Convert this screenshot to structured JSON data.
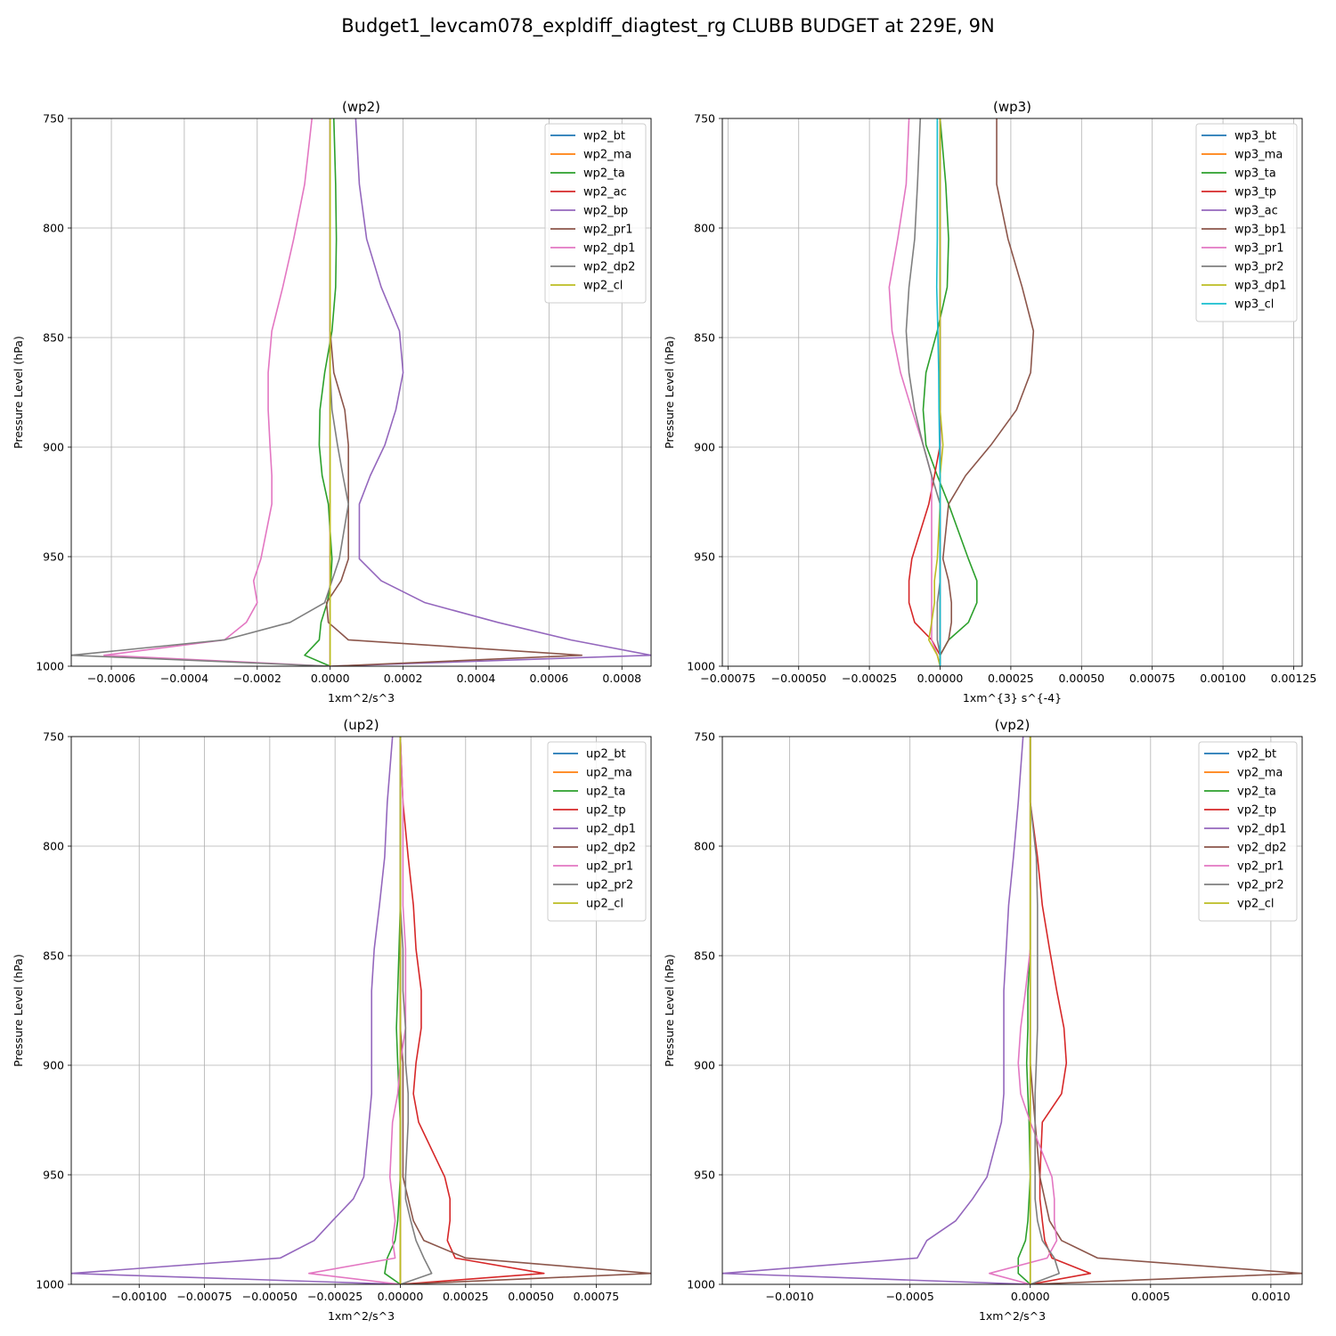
{
  "figure": {
    "title": "Budget1_levcam078_expldiff_diagtest_rg CLUBB BUDGET at 229E, 9N"
  },
  "chart_data": [
    {
      "type": "line",
      "title": "(wp2)",
      "xlabel": "1xm^2/s^3",
      "ylabel": "Pressure Level (hPa)",
      "xlim": [
        -0.00071,
        0.00088
      ],
      "ylim": [
        1000,
        750
      ],
      "xticks": [
        -0.0006,
        -0.0004,
        -0.0002,
        0.0,
        0.0002,
        0.0004,
        0.0006,
        0.0008
      ],
      "xtick_labels": [
        "−0.0006",
        "−0.0004",
        "−0.0002",
        "0.0000",
        "0.0002",
        "0.0004",
        "0.0006",
        "0.0008"
      ],
      "yticks": [
        750,
        800,
        850,
        900,
        950,
        1000
      ],
      "ytick_labels": [
        "750",
        "800",
        "850",
        "900",
        "950",
        "1000"
      ],
      "grid": true,
      "legend": "upper right",
      "levels": [
        750,
        780,
        805,
        827,
        847,
        866,
        883,
        899,
        913,
        926,
        951,
        961,
        971,
        980,
        988,
        995,
        1000
      ],
      "series": [
        {
          "name": "wp2_bt",
          "color": "#1f77b4",
          "values": [
            0,
            0,
            0,
            0,
            0,
            0,
            0,
            0,
            0,
            0,
            0,
            0,
            0,
            0,
            0,
            0,
            0
          ]
        },
        {
          "name": "wp2_ma",
          "color": "#ff7f0e",
          "values": [
            0,
            0,
            0,
            0,
            0,
            0,
            0,
            0,
            0,
            0,
            0,
            0,
            0,
            0,
            0,
            0,
            0
          ]
        },
        {
          "name": "wp2_ta",
          "color": "#2ca02c",
          "values": [
            1e-05,
            1.5e-05,
            1.7e-05,
            1.5e-05,
            5e-06,
            -1.5e-05,
            -2.8e-05,
            -3e-05,
            -2.2e-05,
            -5e-06,
            5e-06,
            2e-06,
            -8e-06,
            -2.5e-05,
            -3e-05,
            -7e-05,
            0
          ]
        },
        {
          "name": "wp2_ac",
          "color": "#d62728",
          "values": [
            0,
            0,
            0,
            0,
            0,
            0,
            0,
            0,
            0,
            0,
            0,
            0,
            0,
            0,
            0,
            0,
            0
          ]
        },
        {
          "name": "wp2_bp",
          "color": "#9467bd",
          "values": [
            7e-05,
            8e-05,
            0.0001,
            0.00014,
            0.00019,
            0.0002,
            0.00018,
            0.00015,
            0.00011,
            8e-05,
            8e-05,
            0.00014,
            0.00026,
            0.00046,
            0.00066,
            0.00088,
            0
          ]
        },
        {
          "name": "wp2_pr1",
          "color": "#8c564b",
          "values": [
            0,
            0,
            0,
            0,
            0,
            1e-05,
            4e-05,
            5e-05,
            5e-05,
            5e-05,
            5e-05,
            3e-05,
            -1e-05,
            -5e-06,
            5e-05,
            0.00069,
            5e-06
          ]
        },
        {
          "name": "wp2_dp1",
          "color": "#e377c2",
          "values": [
            -5e-05,
            -7e-05,
            -0.0001,
            -0.00013,
            -0.00016,
            -0.00017,
            -0.00017,
            -0.000165,
            -0.00016,
            -0.00016,
            -0.00019,
            -0.00021,
            -0.0002,
            -0.00023,
            -0.00029,
            -0.00062,
            0
          ]
        },
        {
          "name": "wp2_dp2",
          "color": "#7f7f7f",
          "values": [
            0,
            0,
            0,
            0,
            0,
            0,
            5e-06,
            2e-05,
            3.5e-05,
            5e-05,
            2.5e-05,
            5e-06,
            -1.5e-05,
            -0.00011,
            -0.00029,
            -0.00071,
            0
          ]
        },
        {
          "name": "wp2_cl",
          "color": "#bcbd22",
          "values": [
            0,
            0,
            0,
            0,
            0,
            0,
            0,
            0,
            0,
            0,
            0,
            0,
            0,
            0,
            0,
            0,
            0
          ]
        }
      ]
    },
    {
      "type": "line",
      "title": "(wp3)",
      "xlabel": "1xm^{3} s^{-4}",
      "ylabel": "Pressure Level (hPa)",
      "xlim": [
        -0.00077,
        0.00128
      ],
      "ylim": [
        1000,
        750
      ],
      "xticks": [
        -0.00075,
        -0.0005,
        -0.00025,
        0.0,
        0.00025,
        0.0005,
        0.00075,
        0.001,
        0.00125
      ],
      "xtick_labels": [
        "−0.00075",
        "−0.00050",
        "−0.00025",
        "0.00000",
        "0.00025",
        "0.00050",
        "0.00075",
        "0.00100",
        "0.00125"
      ],
      "yticks": [
        750,
        800,
        850,
        900,
        950,
        1000
      ],
      "ytick_labels": [
        "750",
        "800",
        "850",
        "900",
        "950",
        "1000"
      ],
      "grid": true,
      "legend": "upper right",
      "levels": [
        750,
        780,
        805,
        827,
        847,
        866,
        883,
        899,
        913,
        926,
        951,
        961,
        971,
        980,
        988,
        995,
        1000
      ],
      "series": [
        {
          "name": "wp3_bt",
          "color": "#1f77b4",
          "values": [
            0,
            0,
            0,
            0,
            0,
            0,
            0,
            0,
            0,
            0,
            0,
            0,
            0,
            0,
            0,
            0,
            0
          ]
        },
        {
          "name": "wp3_ma",
          "color": "#ff7f0e",
          "values": [
            0,
            0,
            0,
            0,
            0,
            0,
            0,
            0,
            0,
            0,
            0,
            0,
            0,
            0,
            0,
            0,
            0
          ]
        },
        {
          "name": "wp3_ta",
          "color": "#2ca02c",
          "values": [
            0,
            2e-05,
            3e-05,
            2.5e-05,
            -1e-05,
            -5e-05,
            -6e-05,
            -5e-05,
            -1e-05,
            3e-05,
            0.0001,
            0.00013,
            0.00013,
            0.0001,
            3e-05,
            0,
            0
          ]
        },
        {
          "name": "wp3_tp",
          "color": "#d62728",
          "values": [
            0,
            0,
            0,
            0,
            0,
            0,
            0,
            0,
            -2e-05,
            -4e-05,
            -0.0001,
            -0.00011,
            -0.00011,
            -9e-05,
            -3e-05,
            0,
            0
          ]
        },
        {
          "name": "wp3_ac",
          "color": "#9467bd",
          "values": [
            0,
            0,
            0,
            0,
            0,
            0,
            0,
            0,
            0,
            0,
            0,
            0,
            0,
            0,
            0,
            0,
            0
          ]
        },
        {
          "name": "wp3_bp1",
          "color": "#8c564b",
          "values": [
            0.0002,
            0.0002,
            0.00024,
            0.00029,
            0.00033,
            0.00032,
            0.00027,
            0.00018,
            9e-05,
            3e-05,
            1e-05,
            3e-05,
            4e-05,
            4e-05,
            3e-05,
            0,
            0
          ]
        },
        {
          "name": "wp3_pr1",
          "color": "#e377c2",
          "values": [
            -0.00011,
            -0.00012,
            -0.00015,
            -0.00018,
            -0.00017,
            -0.00014,
            -0.0001,
            -6e-05,
            -3e-05,
            -3e-05,
            -3e-05,
            -3e-05,
            -3e-05,
            -3e-05,
            -3e-05,
            -1e-05,
            0
          ]
        },
        {
          "name": "wp3_pr2",
          "color": "#7f7f7f",
          "values": [
            -7e-05,
            -8e-05,
            -9e-05,
            -0.00011,
            -0.00012,
            -0.00011,
            -9e-05,
            -6e-05,
            -3e-05,
            0,
            0,
            0,
            -1e-05,
            -1e-05,
            -1e-05,
            0,
            0
          ]
        },
        {
          "name": "wp3_dp1",
          "color": "#bcbd22",
          "values": [
            0,
            0,
            0,
            0,
            0,
            0,
            0,
            1e-05,
            0,
            0,
            -1e-05,
            -2e-05,
            -2e-05,
            -3e-05,
            -4e-05,
            -1e-05,
            0
          ]
        },
        {
          "name": "wp3_cl",
          "color": "#17becf",
          "values": [
            -1e-05,
            -1e-05,
            -1e-05,
            -1.2e-05,
            -8e-06,
            -5e-06,
            -4e-06,
            -2e-06,
            0,
            0,
            0,
            0,
            0,
            0,
            0,
            0,
            0
          ]
        }
      ]
    },
    {
      "type": "line",
      "title": "(up2)",
      "xlabel": "1xm^2/s^3",
      "ylabel": "Pressure Level (hPa)",
      "xlim": [
        -0.00126,
        0.00096
      ],
      "ylim": [
        1000,
        750
      ],
      "xticks": [
        -0.001,
        -0.00075,
        -0.0005,
        -0.00025,
        0.0,
        0.00025,
        0.0005,
        0.00075
      ],
      "xtick_labels": [
        "−0.00100",
        "−0.00075",
        "−0.00050",
        "−0.00025",
        "0.00000",
        "0.00025",
        "0.00050",
        "0.00075"
      ],
      "yticks": [
        750,
        800,
        850,
        900,
        950,
        1000
      ],
      "ytick_labels": [
        "750",
        "800",
        "850",
        "900",
        "950",
        "1000"
      ],
      "grid": true,
      "legend": "upper right",
      "levels": [
        750,
        780,
        805,
        827,
        847,
        866,
        883,
        899,
        913,
        926,
        951,
        961,
        971,
        980,
        988,
        995,
        1000
      ],
      "series": [
        {
          "name": "up2_bt",
          "color": "#1f77b4",
          "values": [
            0,
            0,
            0,
            0,
            0,
            0,
            0,
            0,
            0,
            0,
            0,
            0,
            0,
            0,
            0,
            0,
            0
          ]
        },
        {
          "name": "up2_ma",
          "color": "#ff7f0e",
          "values": [
            0,
            0,
            0,
            0,
            0,
            0,
            0,
            0,
            0,
            0,
            0,
            0,
            0,
            0,
            0,
            0,
            0
          ]
        },
        {
          "name": "up2_ta",
          "color": "#2ca02c",
          "values": [
            0,
            0,
            0,
            0,
            -5e-06,
            -1e-05,
            -1.5e-05,
            -1e-05,
            -5e-06,
            0,
            0,
            -5e-06,
            -1e-05,
            -2e-05,
            -5e-05,
            -6e-05,
            0
          ]
        },
        {
          "name": "up2_tp",
          "color": "#d62728",
          "values": [
            0,
            1e-05,
            3e-05,
            5e-05,
            6e-05,
            8e-05,
            8e-05,
            6e-05,
            5e-05,
            7e-05,
            0.00017,
            0.00019,
            0.00019,
            0.00018,
            0.00021,
            0.00055,
            0
          ]
        },
        {
          "name": "up2_dp1",
          "color": "#9467bd",
          "values": [
            -3e-05,
            -5e-05,
            -6e-05,
            -8e-05,
            -0.0001,
            -0.00011,
            -0.00011,
            -0.00011,
            -0.00011,
            -0.00012,
            -0.00014,
            -0.00018,
            -0.00026,
            -0.00033,
            -0.00046,
            -0.00126,
            0
          ]
        },
        {
          "name": "up2_dp2",
          "color": "#8c564b",
          "values": [
            0,
            0,
            0,
            0,
            0,
            0,
            0,
            1e-05,
            1e-05,
            1e-05,
            1e-05,
            3e-05,
            5e-05,
            9e-05,
            0.00025,
            0.00096,
            0
          ]
        },
        {
          "name": "up2_pr1",
          "color": "#e377c2",
          "values": [
            0,
            1e-05,
            1e-05,
            1e-05,
            2e-05,
            2e-05,
            2e-05,
            0,
            -1e-05,
            -3e-05,
            -4e-05,
            -3e-05,
            -2e-05,
            -3e-05,
            -2e-05,
            -0.00035,
            0
          ]
        },
        {
          "name": "up2_pr2",
          "color": "#7f7f7f",
          "values": [
            0,
            0,
            0,
            0,
            1e-05,
            1e-05,
            2e-05,
            2e-05,
            3e-05,
            3e-05,
            2e-05,
            2e-05,
            4e-05,
            6e-05,
            9e-05,
            0.00012,
            0
          ]
        },
        {
          "name": "up2_cl",
          "color": "#bcbd22",
          "values": [
            0,
            0,
            0,
            0,
            0,
            0,
            0,
            0,
            0,
            0,
            0,
            0,
            0,
            0,
            0,
            0,
            0
          ]
        }
      ]
    },
    {
      "type": "line",
      "title": "(vp2)",
      "xlabel": "1xm^2/s^3",
      "ylabel": "Pressure Level (hPa)",
      "xlim": [
        -0.00128,
        0.00113
      ],
      "ylim": [
        1000,
        750
      ],
      "xticks": [
        -0.001,
        -0.0005,
        0.0,
        0.0005,
        0.001
      ],
      "xtick_labels": [
        "−0.0010",
        "−0.0005",
        "0.0000",
        "0.0005",
        "0.0010"
      ],
      "yticks": [
        750,
        800,
        850,
        900,
        950,
        1000
      ],
      "ytick_labels": [
        "750",
        "800",
        "850",
        "900",
        "950",
        "1000"
      ],
      "grid": true,
      "legend": "upper right",
      "levels": [
        750,
        780,
        805,
        827,
        847,
        866,
        883,
        899,
        913,
        926,
        951,
        961,
        971,
        980,
        988,
        995,
        1000
      ],
      "series": [
        {
          "name": "vp2_bt",
          "color": "#1f77b4",
          "values": [
            0,
            0,
            0,
            0,
            0,
            0,
            0,
            0,
            0,
            0,
            0,
            0,
            0,
            0,
            0,
            0,
            0
          ]
        },
        {
          "name": "vp2_ma",
          "color": "#ff7f0e",
          "values": [
            0,
            0,
            0,
            0,
            0,
            0,
            0,
            0,
            0,
            0,
            0,
            0,
            0,
            0,
            0,
            0,
            0
          ]
        },
        {
          "name": "vp2_ta",
          "color": "#2ca02c",
          "values": [
            0,
            0,
            0,
            0,
            0,
            -1e-05,
            -1e-05,
            -1.5e-05,
            -1e-05,
            -5e-06,
            0,
            -5e-06,
            -1e-05,
            -2e-05,
            -5e-05,
            -5e-05,
            0
          ]
        },
        {
          "name": "vp2_tp",
          "color": "#d62728",
          "values": [
            0,
            0,
            3e-05,
            5e-05,
            8e-05,
            0.00011,
            0.00014,
            0.00015,
            0.00013,
            5e-05,
            4e-05,
            4e-05,
            5e-05,
            6e-05,
            9e-05,
            0.00025,
            0
          ]
        },
        {
          "name": "vp2_dp1",
          "color": "#9467bd",
          "values": [
            -3e-05,
            -5e-05,
            -7e-05,
            -9e-05,
            -0.0001,
            -0.00011,
            -0.00011,
            -0.00011,
            -0.00011,
            -0.00012,
            -0.00018,
            -0.00024,
            -0.00031,
            -0.00043,
            -0.00047,
            -0.00128,
            0
          ]
        },
        {
          "name": "vp2_dp2",
          "color": "#8c564b",
          "values": [
            0,
            0,
            0,
            0,
            0,
            0,
            0,
            0,
            1e-05,
            2e-05,
            4e-05,
            6e-05,
            8e-05,
            0.00013,
            0.00028,
            0.00113,
            0
          ]
        },
        {
          "name": "vp2_pr1",
          "color": "#e377c2",
          "values": [
            0,
            0,
            0,
            0,
            0,
            -2e-05,
            -4e-05,
            -5e-05,
            -4e-05,
            0,
            9e-05,
            0.0001,
            0.0001,
            0.00011,
            7e-05,
            -0.00017,
            0
          ]
        },
        {
          "name": "vp2_pr2",
          "color": "#7f7f7f",
          "values": [
            0,
            0,
            2.5e-05,
            3e-05,
            3e-05,
            3e-05,
            3e-05,
            2.5e-05,
            2e-05,
            2e-05,
            2e-05,
            2e-05,
            3e-05,
            5e-05,
            0.0001,
            0.00012,
            0
          ]
        },
        {
          "name": "vp2_cl",
          "color": "#bcbd22",
          "values": [
            0,
            0,
            0,
            0,
            0,
            0,
            0,
            0,
            0,
            0,
            0,
            0,
            0,
            0,
            0,
            0,
            0
          ]
        }
      ]
    }
  ]
}
